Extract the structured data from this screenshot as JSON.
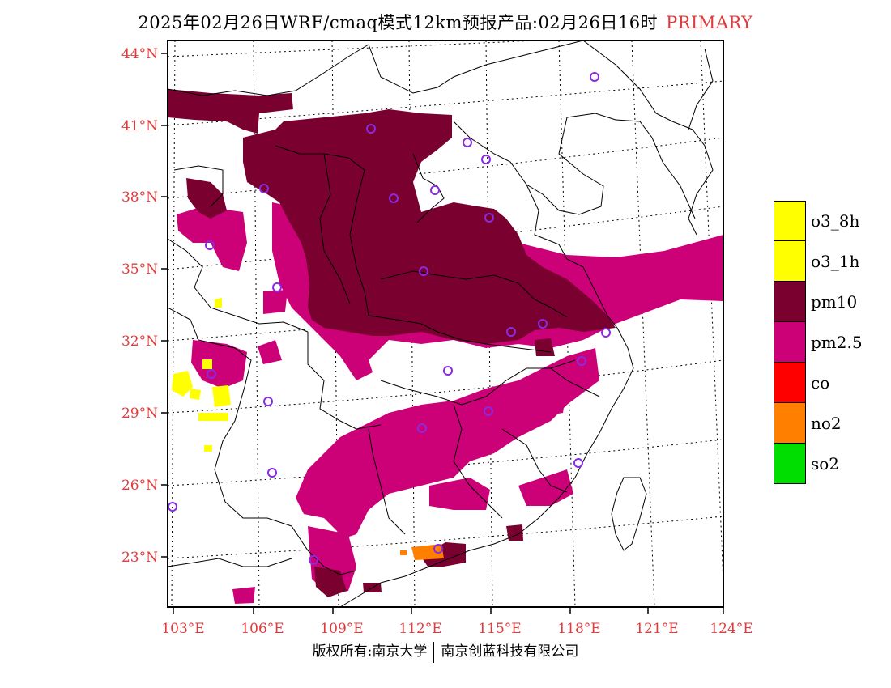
{
  "title": {
    "main": "2025年02月26日WRF/cmaq模式12km预报产品:02月26日16时",
    "tag": "PRIMARY"
  },
  "axes": {
    "lat_labels": [
      "44°N",
      "41°N",
      "38°N",
      "35°N",
      "32°N",
      "29°N",
      "26°N",
      "23°N"
    ],
    "lon_labels": [
      "103°E",
      "106°E",
      "109°E",
      "112°E",
      "115°E",
      "118°E",
      "121°E",
      "124°E"
    ]
  },
  "legend": {
    "items": [
      {
        "label": "o3_8h",
        "color": "#ffff00"
      },
      {
        "label": "o3_1h",
        "color": "#ffff00"
      },
      {
        "label": "pm10",
        "color": "#7a0030"
      },
      {
        "label": "pm2.5",
        "color": "#cc0077"
      },
      {
        "label": "co",
        "color": "#ff0000"
      },
      {
        "label": "no2",
        "color": "#ff8000"
      },
      {
        "label": "so2",
        "color": "#00dd00"
      }
    ]
  },
  "colors": {
    "pm10": "#7a0030",
    "pm25": "#cc0077",
    "o3": "#ffff00",
    "no2": "#ff8000",
    "station": "#8a2be2",
    "axis_label": "#e23a3a"
  },
  "footer": {
    "left": "版权所有:南京大学",
    "right": "南京创蓝科技有限公司"
  }
}
